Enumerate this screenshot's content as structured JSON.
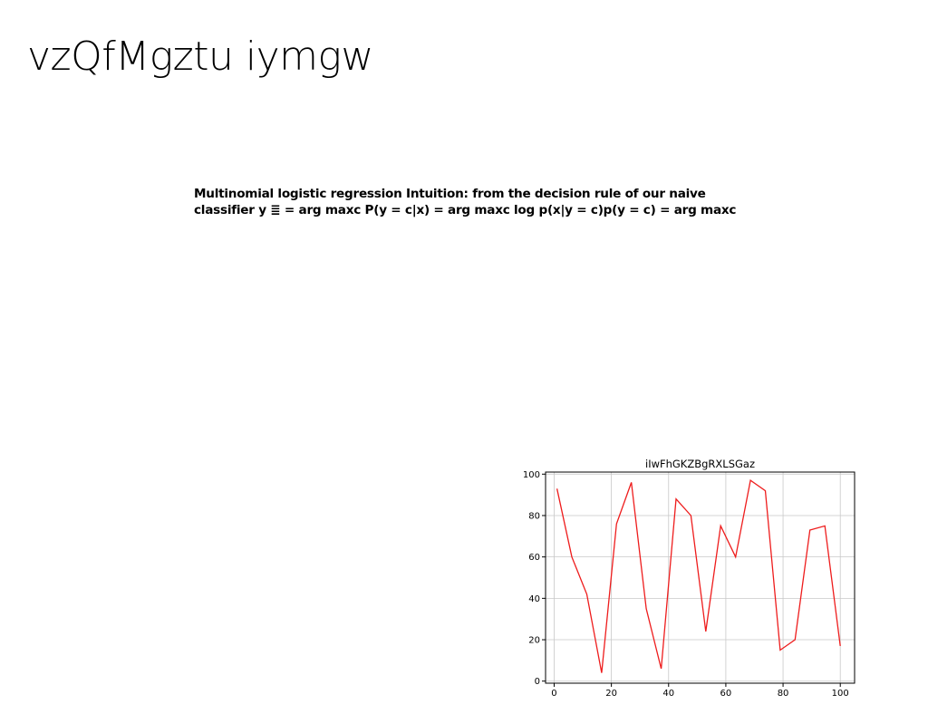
{
  "slide": {
    "title": "vzQfMgztu iymgw",
    "body_line1": "Multinomial logistic regression Intuition: from the decision rule of our naive",
    "body_line2": "classifier y ≣ = arg maxc P(y = c|x) = arg maxc log p(x|y = c)p(y = c) = arg maxc"
  },
  "chart_data": {
    "type": "line",
    "title": "iIwFhGKZBgRXLSGaz",
    "xlabel": "",
    "ylabel": "",
    "xlim": [
      -3,
      105
    ],
    "ylim": [
      -1,
      101
    ],
    "xticks": [
      0,
      20,
      40,
      60,
      80,
      100
    ],
    "yticks": [
      0,
      20,
      40,
      60,
      80,
      100
    ],
    "grid": true,
    "series": [
      {
        "color": "#ee1c1c",
        "x": [
          1,
          6.2,
          11.4,
          16.6,
          21.8,
          27,
          32.2,
          37.4,
          42.6,
          47.8,
          53,
          58.2,
          63.4,
          68.6,
          73.8,
          79,
          84.2,
          89.4,
          94.6,
          100
        ],
        "y": [
          93,
          60,
          42,
          4,
          76,
          96,
          35,
          6,
          88,
          80,
          24,
          75,
          60,
          97,
          92,
          15,
          20,
          73,
          75,
          17
        ]
      }
    ]
  }
}
